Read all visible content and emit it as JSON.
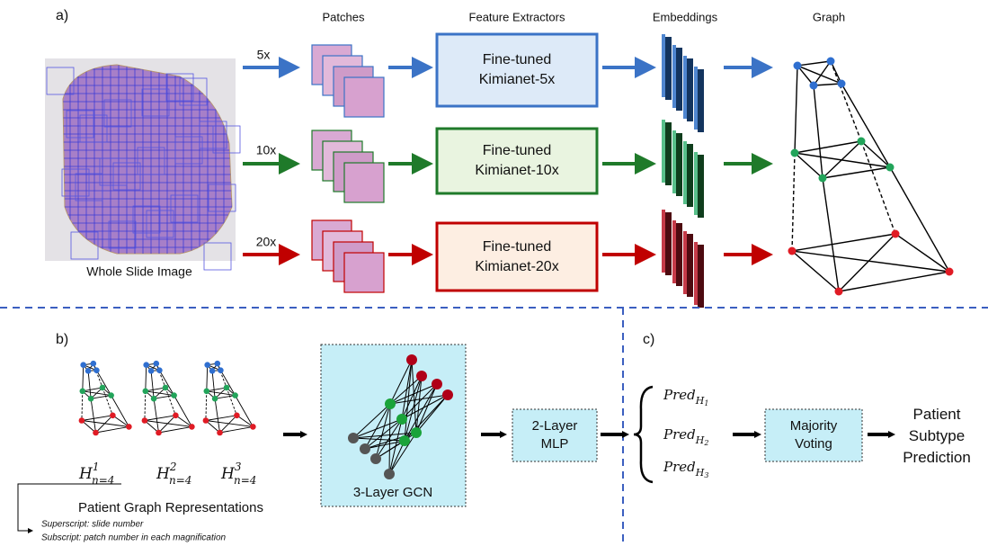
{
  "panel_a": {
    "label": "a)",
    "headers": [
      "Patches",
      "Feature Extractors",
      "Embeddings",
      "Graph"
    ],
    "wsi_label": "Whole Slide Image",
    "rows": [
      {
        "magnification": "5x",
        "extractor": [
          "Fine-tuned",
          "Kimianet-5x"
        ]
      },
      {
        "magnification": "10x",
        "extractor": [
          "Fine-tuned",
          "Kimianet-10x"
        ]
      },
      {
        "magnification": "20x",
        "extractor": [
          "Fine-tuned",
          "Kimianet-20x"
        ]
      }
    ]
  },
  "panel_b": {
    "label": "b)",
    "graphs": [
      {
        "base": "H",
        "sup": "1",
        "sub": "n=4"
      },
      {
        "base": "H",
        "sup": "2",
        "sub": "n=4"
      },
      {
        "base": "H",
        "sup": "3",
        "sub": "n=4"
      }
    ],
    "caption": "Patient Graph Representations",
    "notes": [
      "Superscript: slide number",
      "Subscript: patch number in each magnification"
    ],
    "gcn": "3-Layer GCN",
    "mlp": [
      "2-Layer",
      "MLP"
    ]
  },
  "panel_c": {
    "label": "c)",
    "predictions": [
      {
        "base": "Pred",
        "sub": "H",
        "subsub": "1"
      },
      {
        "base": "Pred",
        "sub": "H",
        "subsub": "2"
      },
      {
        "base": "Pred",
        "sub": "H",
        "subsub": "3"
      }
    ],
    "voting": [
      "Majority",
      "Voting"
    ],
    "output": [
      "Patient",
      "Subtype",
      "Prediction"
    ]
  }
}
